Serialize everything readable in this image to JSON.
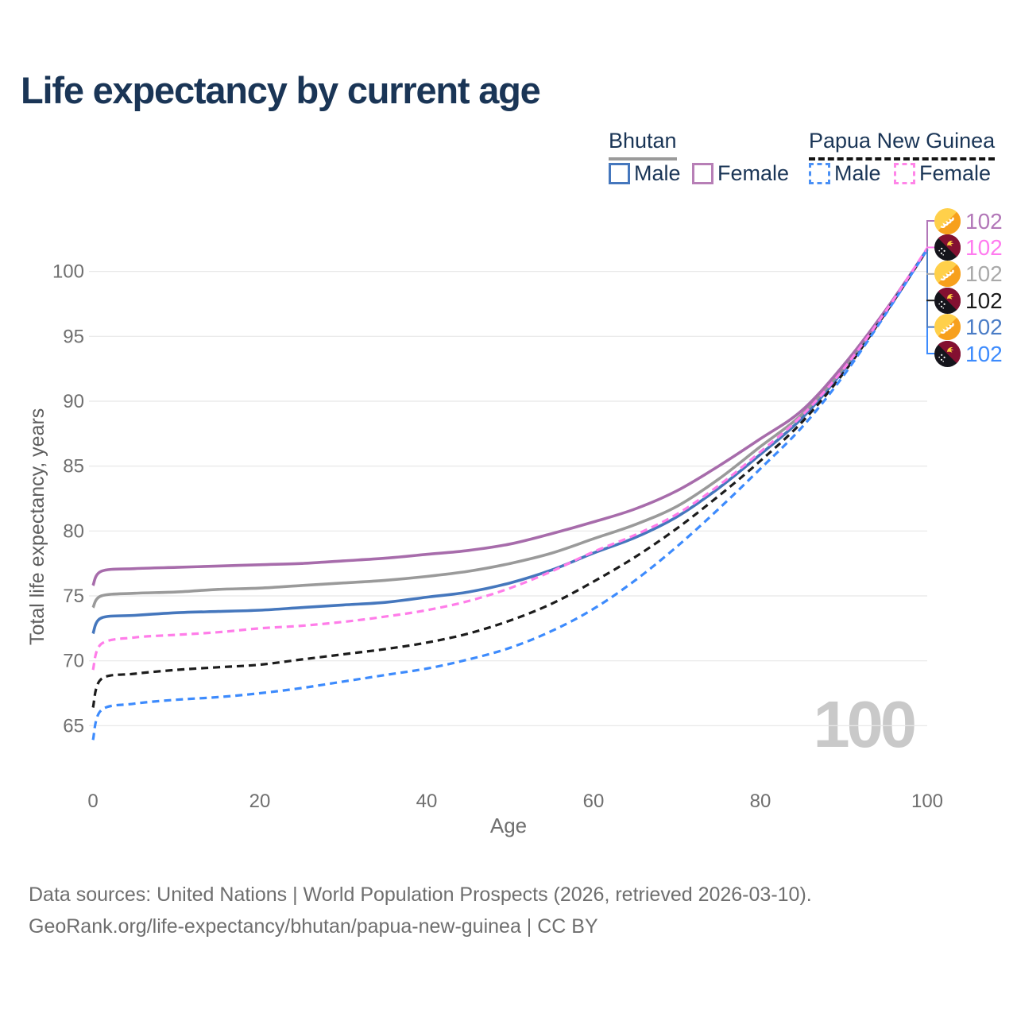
{
  "title": "Life expectancy by current age",
  "legend": {
    "groups": [
      {
        "label": "Bhutan",
        "line_style": "solid",
        "underline_color": "#9a9a9a",
        "items": [
          {
            "label": "Male",
            "color": "#4577bd",
            "dash": false
          },
          {
            "label": "Female",
            "color": "#b77fb6",
            "dash": false
          }
        ]
      },
      {
        "label": "Papua New Guinea",
        "line_style": "dashed",
        "underline_color": "#141414",
        "items": [
          {
            "label": "Male",
            "color": "#4a90f5",
            "dash": true
          },
          {
            "label": "Female",
            "color": "#ff85e8",
            "dash": true
          }
        ]
      }
    ]
  },
  "age_counter": "100",
  "footer": {
    "line1": "Data sources: United Nations | World Population Prospects (2026, retrieved 2026-03-10).",
    "line2": "GeoRank.org/life-expectancy/bhutan/papua-new-guinea | CC BY"
  },
  "chart_data": {
    "type": "line",
    "title": "Life expectancy by current age",
    "xlabel": "Age",
    "ylabel": "Total life expectancy, years",
    "xlim": [
      0,
      100
    ],
    "ylim": [
      63.5,
      103
    ],
    "x_ticks": [
      0,
      20,
      40,
      60,
      80,
      100
    ],
    "y_ticks": [
      65,
      70,
      75,
      80,
      85,
      90,
      95,
      100
    ],
    "grid": "horizontal",
    "legend_position": "top-right",
    "ages": [
      0,
      1,
      5,
      10,
      15,
      20,
      25,
      30,
      35,
      40,
      45,
      50,
      55,
      60,
      65,
      70,
      75,
      80,
      85,
      90,
      95,
      100
    ],
    "series": [
      {
        "id": "bhutan-male",
        "name": "Bhutan Male",
        "country": "Bhutan",
        "sex": "Male",
        "flag": "bhutan",
        "color": "#4577bd",
        "dash": false,
        "end_label": "102",
        "values": [
          72.1,
          73.3,
          73.5,
          73.7,
          73.8,
          73.9,
          74.1,
          74.3,
          74.5,
          74.9,
          75.3,
          76.0,
          77.0,
          78.3,
          79.5,
          81.1,
          83.3,
          85.9,
          88.7,
          92.4,
          96.8,
          101.7
        ]
      },
      {
        "id": "bhutan-both",
        "name": "Bhutan (both sexes)",
        "country": "Bhutan",
        "sex": "Both",
        "flag": "bhutan",
        "color": "#9a9a9a",
        "dash": false,
        "end_label": "102",
        "values": [
          74.1,
          75.0,
          75.2,
          75.3,
          75.5,
          75.6,
          75.8,
          76.0,
          76.2,
          76.5,
          76.9,
          77.5,
          78.3,
          79.4,
          80.5,
          81.9,
          84.0,
          86.5,
          89.0,
          92.6,
          96.9,
          101.7
        ]
      },
      {
        "id": "bhutan-female",
        "name": "Bhutan Female",
        "country": "Bhutan",
        "sex": "Female",
        "flag": "bhutan",
        "color": "#a76cab",
        "dash": false,
        "end_label": "102",
        "values": [
          75.8,
          76.9,
          77.1,
          77.2,
          77.3,
          77.4,
          77.5,
          77.7,
          77.9,
          78.2,
          78.5,
          79.0,
          79.8,
          80.7,
          81.7,
          83.1,
          85.0,
          87.1,
          89.3,
          92.8,
          97.0,
          101.7
        ]
      },
      {
        "id": "png-both",
        "name": "Papua New Guinea (both sexes)",
        "country": "Papua New Guinea",
        "sex": "Both",
        "flag": "png",
        "color": "#1c1c1c",
        "dash": true,
        "end_label": "102",
        "values": [
          66.4,
          68.6,
          69.0,
          69.3,
          69.5,
          69.7,
          70.1,
          70.5,
          70.9,
          71.4,
          72.1,
          73.1,
          74.4,
          76.1,
          78.0,
          80.2,
          82.7,
          85.4,
          88.4,
          92.2,
          96.8,
          101.7
        ]
      },
      {
        "id": "png-male",
        "name": "Papua New Guinea Male",
        "country": "Papua New Guinea",
        "sex": "Male",
        "flag": "png",
        "color": "#3d8bfd",
        "dash": true,
        "end_label": "102",
        "values": [
          63.9,
          66.2,
          66.7,
          67.0,
          67.2,
          67.5,
          67.9,
          68.4,
          68.9,
          69.4,
          70.1,
          71.0,
          72.3,
          74.0,
          76.2,
          78.8,
          81.7,
          84.8,
          88.0,
          92.0,
          96.7,
          101.7
        ]
      },
      {
        "id": "png-female",
        "name": "Papua New Guinea Female",
        "country": "Papua New Guinea",
        "sex": "Female",
        "flag": "png",
        "color": "#ff7de9",
        "dash": true,
        "end_label": "102",
        "values": [
          69.3,
          71.3,
          71.8,
          72.0,
          72.2,
          72.5,
          72.7,
          73.0,
          73.4,
          73.9,
          74.6,
          75.6,
          76.9,
          78.4,
          79.7,
          81.3,
          83.5,
          86.1,
          88.9,
          92.5,
          96.9,
          101.8
        ]
      }
    ],
    "end_labels": [
      {
        "flag": "bhutan",
        "series": "bhutan-female",
        "color": "#b277b8",
        "value": "102"
      },
      {
        "flag": "png",
        "series": "png-female",
        "color": "#ff7bef",
        "value": "102"
      },
      {
        "flag": "bhutan",
        "series": "bhutan-both",
        "color": "#a9a9a9",
        "value": "102"
      },
      {
        "flag": "png",
        "series": "png-both",
        "color": "#1a1a1a",
        "value": "102"
      },
      {
        "flag": "bhutan",
        "series": "bhutan-male",
        "color": "#4a7cc6",
        "value": "102"
      },
      {
        "flag": "png",
        "series": "png-male",
        "color": "#3d8bfd",
        "value": "102"
      }
    ]
  }
}
